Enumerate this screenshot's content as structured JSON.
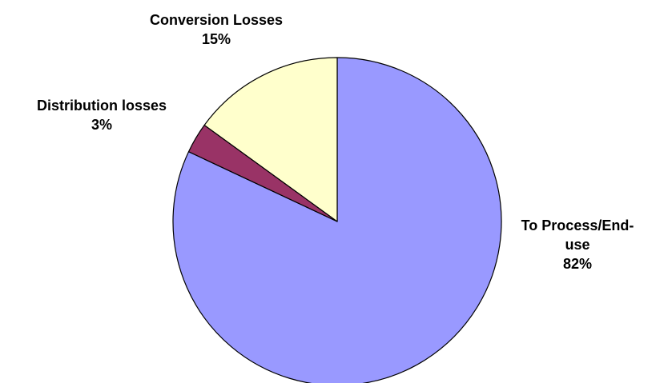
{
  "chart_data": {
    "type": "pie",
    "slices": [
      {
        "name": "To Process/End-use",
        "label_lines": [
          "To Process/End-",
          "use"
        ],
        "percent_label": "82%",
        "value": 82,
        "color": "#9999ff"
      },
      {
        "name": "Distribution losses",
        "label_lines": [
          "Distribution losses"
        ],
        "percent_label": "3%",
        "value": 3,
        "color": "#993366"
      },
      {
        "name": "Conversion Losses",
        "label_lines": [
          "Conversion Losses"
        ],
        "percent_label": "15%",
        "value": 15,
        "color": "#ffffcc"
      }
    ],
    "start": "12 o'clock",
    "direction": "clockwise",
    "legend": "none"
  }
}
